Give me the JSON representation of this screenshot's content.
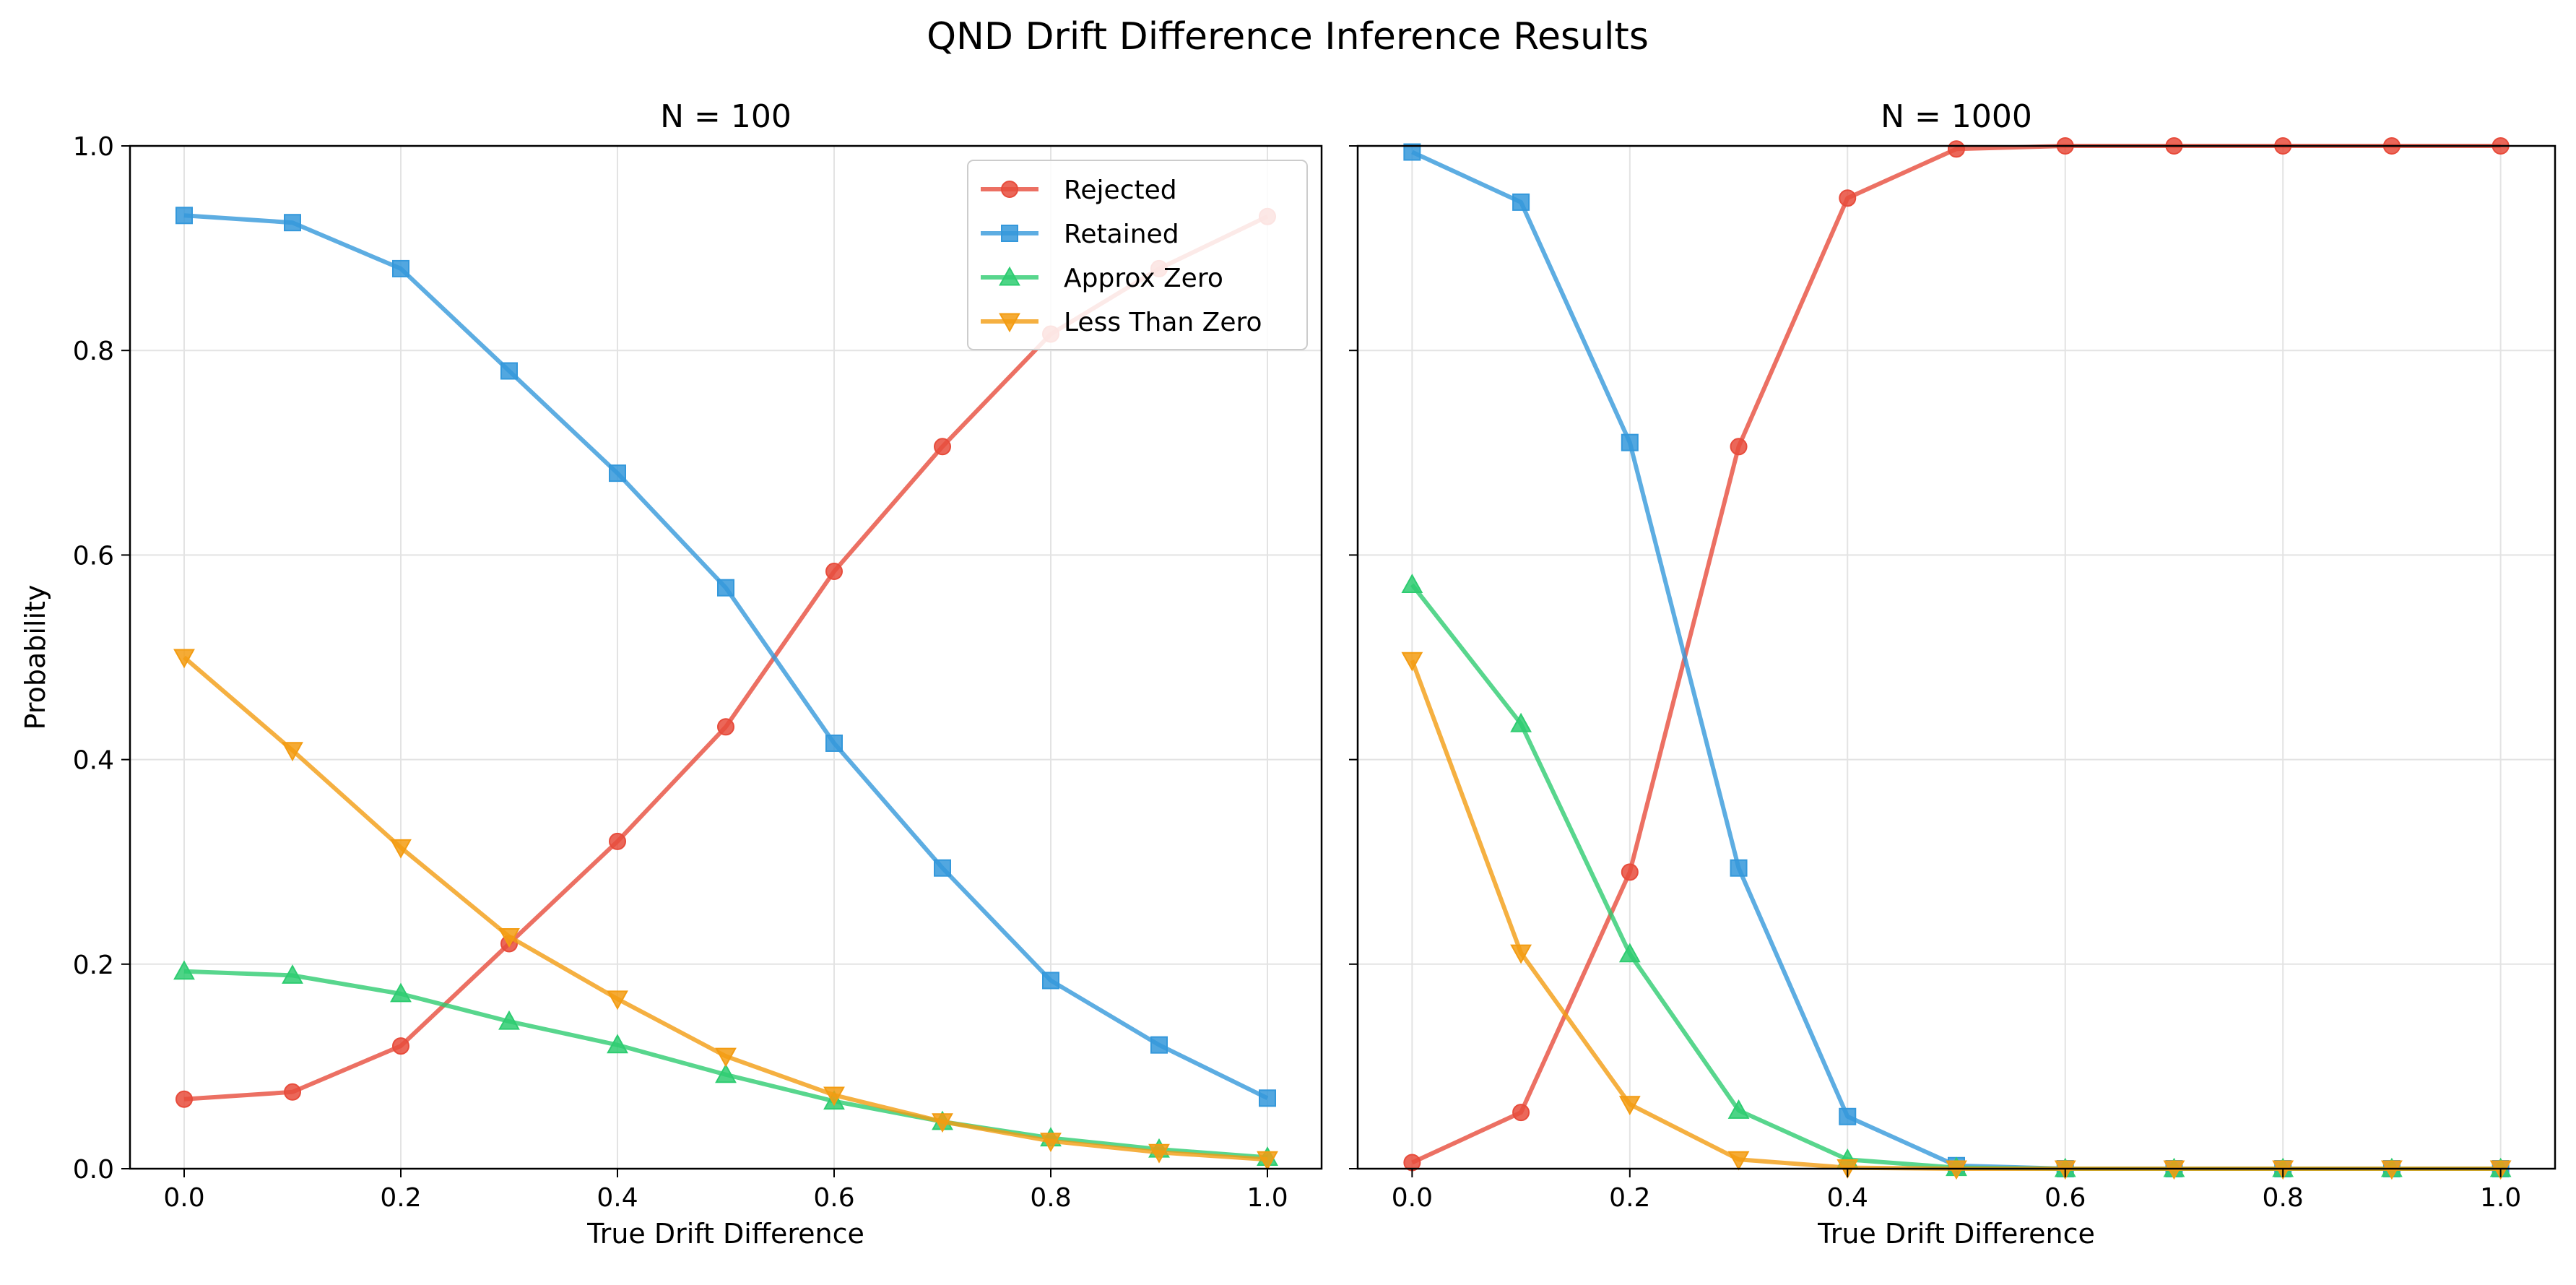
{
  "chart_data": {
    "type": "line",
    "suptitle": "QND Drift Difference Inference Results",
    "ylabel": "Probability",
    "x": [
      0.0,
      0.1,
      0.2,
      0.3,
      0.4,
      0.5,
      0.6,
      0.7,
      0.8,
      0.9,
      1.0
    ],
    "xlim": [
      -0.05,
      1.05
    ],
    "ylim": [
      0.0,
      1.0
    ],
    "xticks": [
      "0.0",
      "0.2",
      "0.4",
      "0.6",
      "0.8",
      "1.0"
    ],
    "yticks": [
      "0.0",
      "0.2",
      "0.4",
      "0.6",
      "0.8",
      "1.0"
    ],
    "grid": true,
    "legend": {
      "location": "top-right",
      "panel": 0,
      "entries": [
        {
          "name": "Rejected",
          "color": "#e74c3c",
          "marker": "circle"
        },
        {
          "name": "Retained",
          "color": "#3498db",
          "marker": "square"
        },
        {
          "name": "Approx Zero",
          "color": "#2ecc71",
          "marker": "triangle-up"
        },
        {
          "name": "Less Than Zero",
          "color": "#f39c12",
          "marker": "triangle-down"
        }
      ]
    },
    "panels": [
      {
        "title": "N = 100",
        "xlabel": "True Drift Difference",
        "series": [
          {
            "name": "Rejected",
            "values": [
              0.068,
              0.075,
              0.12,
              0.22,
              0.32,
              0.432,
              0.584,
              0.706,
              0.816,
              0.88,
              0.931
            ]
          },
          {
            "name": "Retained",
            "values": [
              0.932,
              0.925,
              0.88,
              0.78,
              0.68,
              0.568,
              0.416,
              0.294,
              0.184,
              0.121,
              0.069
            ]
          },
          {
            "name": "Approx Zero",
            "values": [
              0.193,
              0.189,
              0.171,
              0.144,
              0.121,
              0.092,
              0.066,
              0.046,
              0.03,
              0.019,
              0.011
            ]
          },
          {
            "name": "Less Than Zero",
            "values": [
              0.5,
              0.409,
              0.314,
              0.227,
              0.166,
              0.11,
              0.072,
              0.046,
              0.027,
              0.016,
              0.009
            ]
          }
        ]
      },
      {
        "title": "N = 1000",
        "xlabel": "True Drift Difference",
        "series": [
          {
            "name": "Rejected",
            "values": [
              0.006,
              0.055,
              0.29,
              0.706,
              0.949,
              0.997,
              1.0,
              1.0,
              1.0,
              1.0,
              1.0
            ]
          },
          {
            "name": "Retained",
            "values": [
              0.994,
              0.945,
              0.71,
              0.294,
              0.051,
              0.003,
              0.0,
              0.0,
              0.0,
              0.0,
              0.0
            ]
          },
          {
            "name": "Approx Zero",
            "values": [
              0.571,
              0.435,
              0.21,
              0.057,
              0.009,
              0.001,
              0.0,
              0.0,
              0.0,
              0.0,
              0.0
            ]
          },
          {
            "name": "Less Than Zero",
            "values": [
              0.497,
              0.211,
              0.063,
              0.009,
              0.001,
              0.0,
              0.0,
              0.0,
              0.0,
              0.0,
              0.0
            ]
          }
        ]
      }
    ]
  }
}
